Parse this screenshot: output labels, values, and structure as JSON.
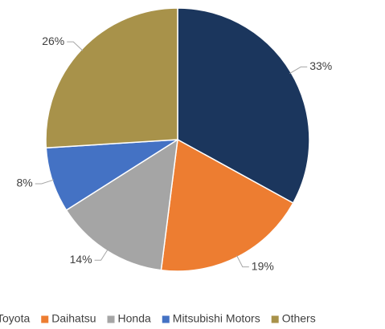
{
  "chart_data": {
    "type": "pie",
    "categories": [
      "Toyota",
      "Daihatsu",
      "Honda",
      "Mitsubishi Motors",
      "Others"
    ],
    "values": [
      33,
      19,
      14,
      8,
      26
    ],
    "value_labels": [
      "33%",
      "19%",
      "14%",
      "8%",
      "26%"
    ],
    "colors": [
      "#1b365d",
      "#ed7d31",
      "#a5a5a5",
      "#4472c4",
      "#a8924a"
    ],
    "legend": "bottom"
  }
}
